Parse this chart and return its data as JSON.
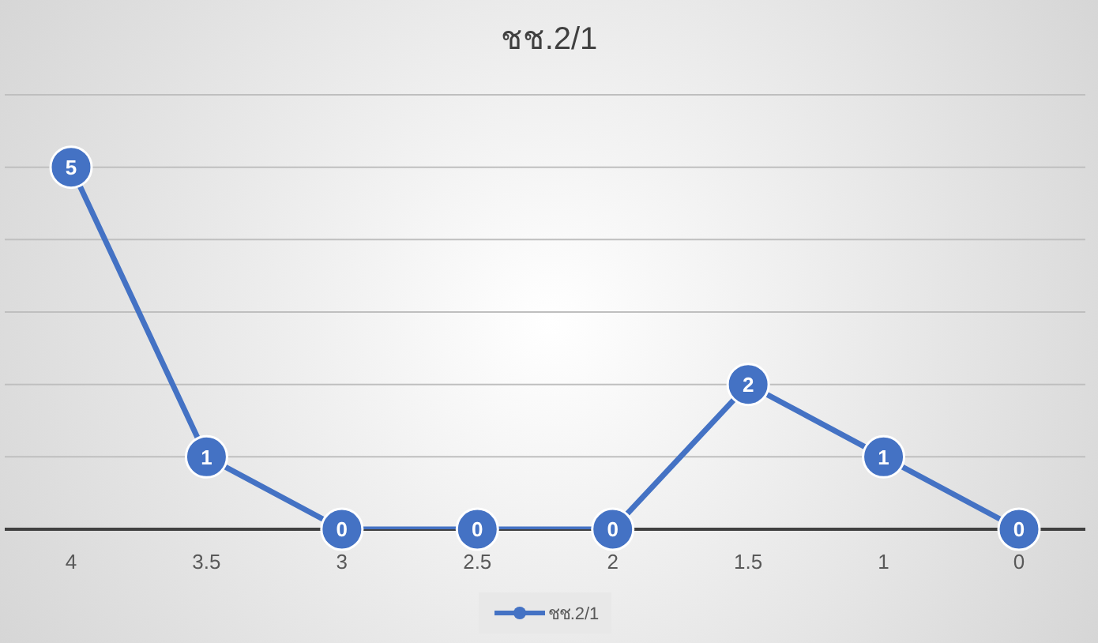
{
  "chart_data": {
    "type": "line",
    "title": "ชช.2/1",
    "categories": [
      "4",
      "3.5",
      "3",
      "2.5",
      "2",
      "1.5",
      "1",
      "0"
    ],
    "series": [
      {
        "name": "ชช.2/1",
        "color": "#4472c4",
        "values": [
          5,
          1,
          0,
          0,
          0,
          2,
          1,
          0
        ]
      }
    ],
    "ylim": [
      0,
      6
    ],
    "yticks": [
      {
        "value": 0,
        "label": null
      },
      {
        "value": 1,
        "label": null
      },
      {
        "value": 2,
        "label": null
      },
      {
        "value": 3,
        "label": null
      },
      {
        "value": 4,
        "label": null
      },
      {
        "value": 5,
        "label": null
      },
      {
        "value": 6,
        "label": null
      }
    ],
    "tick_labels": "x",
    "grid": "y",
    "legend": "bottom",
    "marker": "circle",
    "line_style": "solid",
    "data_labels": true
  }
}
